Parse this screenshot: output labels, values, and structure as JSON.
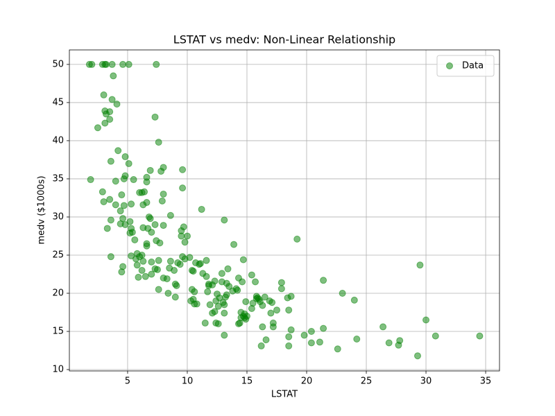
{
  "chart_data": {
    "type": "scatter",
    "title": "LSTAT vs medv: Non-Linear Relationship",
    "x_label": "LSTAT",
    "y_label": "medv ($1000s)",
    "x": [
      1.8,
      2.0,
      2.9,
      3.1,
      3.2,
      3.7,
      4.6,
      5.1,
      7.4,
      3.8,
      3.0,
      3.7,
      4.1,
      3.1,
      3.2,
      3.5,
      7.3,
      3.5,
      3.1,
      2.5,
      7.6,
      4.2,
      4.8,
      3.6,
      5.1,
      8.0,
      9.6,
      6.9,
      7.8,
      4.8,
      6.6,
      4.7,
      1.9,
      4.0,
      6.6,
      5.5,
      9.6,
      2.9,
      6.0,
      6.2,
      6.4,
      4.5,
      8.0,
      3.5,
      7.9,
      3.0,
      6.6,
      5.3,
      4.0,
      4.7,
      6.3,
      11.2,
      4.4,
      8.6,
      6.8,
      6.9,
      4.6,
      3.6,
      13.1,
      5.2,
      4.4,
      4.8,
      7.3,
      8.0,
      9.7,
      6.3,
      5.3,
      6.7,
      3.3,
      9.5,
      7.0,
      5.4,
      5.2,
      9.5,
      10.0,
      19.2,
      5.6,
      7.4,
      9.8,
      7.7,
      6.6,
      13.9,
      6.6,
      5.8,
      6.2,
      5.3,
      3.6,
      6.0,
      9.6,
      10.2,
      5.7,
      9.8,
      14.7,
      7.6,
      11.6,
      8.6,
      6.3,
      7.0,
      9.2,
      10.7,
      11.1,
      9.4,
      11.0,
      29.5,
      5.8,
      4.6,
      8.5,
      13.4,
      7.3,
      7.5,
      8.9,
      10.4,
      6.2,
      10.5,
      4.5,
      11.3,
      12.9,
      7.0,
      15.4,
      6.5,
      11.6,
      5.9,
      8.0,
      14.3,
      8.3,
      21.4,
      12.3,
      15.7,
      12.9,
      17.9,
      9.0,
      11.8,
      12.1,
      9.1,
      11.8,
      13.5,
      14.1,
      7.6,
      10.4,
      14.2,
      13.8,
      10.6,
      11.7,
      8.4,
      23.0,
      12.5,
      13.3,
      15.8,
      18.7,
      9.0,
      16.5,
      12.7,
      15.9,
      16.0,
      24.0,
      12.4,
      16.9,
      10.3,
      14.9,
      17.1,
      15.5,
      10.6,
      11.9,
      13.1,
      16.3,
      12.6,
      15.4,
      18.5,
      17.5,
      14.5,
      13.1,
      14.8,
      14.7,
      14.5,
      14.9,
      11.5,
      12.6,
      14.3,
      26.4,
      30.0,
      27.7,
      26.9,
      27.8,
      30.8,
      34.5,
      29.3,
      22.6,
      24.2,
      21.4,
      20.4,
      19.8,
      18.5,
      18.5,
      20.4,
      21.1,
      16.2,
      16.6,
      17.2,
      16.3,
      17.2,
      18.7,
      14.8,
      14.4,
      15.0,
      13.0,
      12.4,
      13.3,
      13.1,
      10.5,
      10.8,
      12.1,
      13.2,
      12.3,
      14.6,
      15.8,
      16.1,
      17.9,
      18.4,
      17.0
    ],
    "series": [
      {
        "name": "Data",
        "color": "#008000",
        "values": [
          50,
          50,
          50,
          50,
          50,
          50,
          50,
          50,
          50,
          48.5,
          46,
          45.4,
          44.8,
          43.9,
          43.5,
          43.8,
          43.1,
          42.8,
          42.3,
          41.7,
          39.8,
          38.7,
          37.9,
          37.3,
          37,
          36.5,
          36.2,
          36.1,
          36,
          35.4,
          35.2,
          35,
          34.9,
          34.7,
          34.6,
          34.9,
          33.8,
          33.3,
          33.2,
          33.2,
          33.3,
          32.9,
          33,
          32.3,
          32.1,
          32,
          31.9,
          31.7,
          31.6,
          31.5,
          31.6,
          31,
          30.8,
          30.2,
          30,
          29.8,
          29.8,
          29.6,
          29.6,
          29.4,
          29.1,
          29,
          29,
          28.9,
          28.7,
          28.6,
          28.5,
          28.5,
          28.5,
          28.2,
          28,
          28,
          27.9,
          27.5,
          27.5,
          27.1,
          27,
          26.9,
          26.7,
          26.6,
          26.5,
          26.4,
          26.2,
          25.2,
          25,
          24.9,
          24.8,
          24.8,
          24.8,
          24.7,
          24.5,
          24.5,
          24.4,
          24.3,
          24.3,
          24.2,
          24.2,
          24.1,
          24,
          24,
          23.9,
          23.8,
          23.8,
          23.7,
          23.7,
          23.5,
          23.3,
          23.2,
          23.2,
          23.1,
          23,
          23,
          23,
          22.9,
          22.8,
          22.6,
          22.6,
          22.5,
          22.4,
          22.2,
          22.2,
          22.1,
          22,
          22,
          21.9,
          21.7,
          21.6,
          21.5,
          21.5,
          21.4,
          21.2,
          21.2,
          21.1,
          21,
          21,
          20.9,
          20.6,
          20.5,
          20.5,
          20.4,
          20.3,
          20.2,
          20.2,
          20,
          20,
          19.9,
          19.8,
          19.6,
          19.6,
          19.5,
          19.5,
          19.4,
          19.4,
          19.2,
          19.1,
          19,
          19,
          19,
          18.9,
          18.8,
          18.7,
          18.6,
          18.5,
          18.5,
          18.4,
          18.3,
          18,
          17.8,
          17.8,
          17.5,
          17.4,
          17.3,
          17,
          16.8,
          16.6,
          16.1,
          16,
          16,
          15.6,
          16.5,
          13.2,
          13.5,
          13.8,
          14.4,
          14.4,
          11.8,
          12.7,
          14,
          15.4,
          15,
          14.5,
          14.3,
          13.1,
          13.5,
          13.6,
          13.1,
          13.9,
          15.6,
          15.6,
          16.1,
          15.2,
          16.8,
          16.1,
          17,
          18.8,
          16.1,
          21.3,
          14.5,
          19.2,
          18.6,
          17.4,
          19.5,
          17.6,
          21.5,
          19.3,
          18.9,
          20.6,
          19.4,
          17.4
        ]
      }
    ],
    "xlim": [
      0.12,
      36.16
    ],
    "ylim": [
      9.82,
      51.9
    ],
    "xticks": [
      5,
      10,
      15,
      20,
      25,
      30,
      35
    ],
    "yticks": [
      10,
      15,
      20,
      25,
      30,
      35,
      40,
      45,
      50
    ],
    "grid": true,
    "legend": "upper right"
  }
}
